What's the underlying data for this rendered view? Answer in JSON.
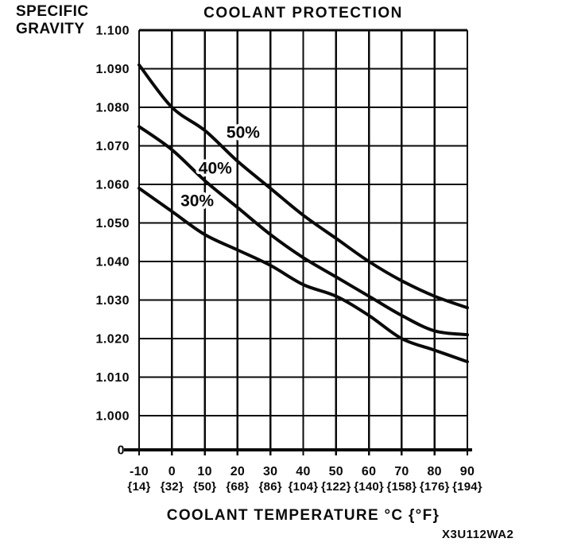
{
  "figure_code": "X3U112WA2",
  "chart_data": {
    "type": "line",
    "title": "COOLANT PROTECTION",
    "xlabel": "COOLANT TEMPERATURE °C {°F}",
    "ylabel": "SPECIFIC GRAVITY",
    "ylabel_lines": [
      "SPECIFIC",
      "GRAVITY"
    ],
    "x": [
      -10,
      0,
      10,
      20,
      30,
      40,
      50,
      60,
      70,
      80,
      90
    ],
    "x_tick_labels_c": [
      "-10",
      "0",
      "10",
      "20",
      "30",
      "40",
      "50",
      "60",
      "70",
      "80",
      "90"
    ],
    "x_tick_labels_f": [
      "{14}",
      "{32}",
      "{50}",
      "{68}",
      "{86}",
      "{104}",
      "{122}",
      "{140}",
      "{158}",
      "{176}",
      "{194}"
    ],
    "y_tick_labels": [
      "1.100",
      "1.090",
      "1.080",
      "1.070",
      "1.060",
      "1.050",
      "1.040",
      "1.030",
      "1.020",
      "1.010",
      "1.000"
    ],
    "y_origin_label": "0",
    "xlim": [
      -10,
      90
    ],
    "ylim_value": [
      1.0,
      1.1
    ],
    "y_grid_step": 0.01,
    "grid": true,
    "legend_position": "inline-labels",
    "line_color": "#0a0a0a",
    "series": [
      {
        "name": "50%",
        "values": [
          1.091,
          1.08,
          1.074,
          1.066,
          1.059,
          1.052,
          1.046,
          1.04,
          1.035,
          1.031,
          1.028
        ],
        "label_anchor": {
          "temp_c": 21.7,
          "value": 1.0735
        }
      },
      {
        "name": "40%",
        "values": [
          1.075,
          1.069,
          1.061,
          1.054,
          1.047,
          1.041,
          1.036,
          1.031,
          1.026,
          1.022,
          1.021
        ],
        "label_anchor": {
          "temp_c": 13.2,
          "value": 1.0642
        }
      },
      {
        "name": "30%",
        "values": [
          1.059,
          1.053,
          1.047,
          1.043,
          1.039,
          1.034,
          1.031,
          1.026,
          1.02,
          1.017,
          1.014
        ],
        "label_anchor": {
          "temp_c": 7.7,
          "value": 1.0558
        }
      }
    ]
  }
}
